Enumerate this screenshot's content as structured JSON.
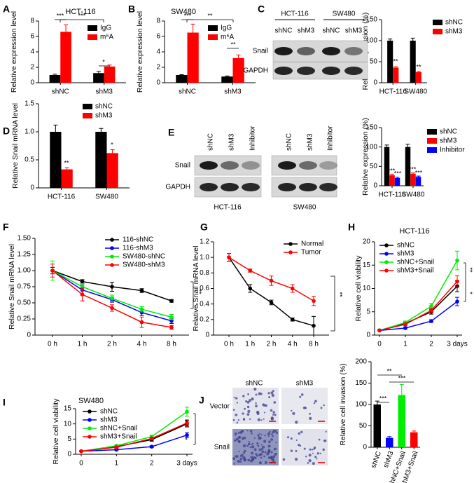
{
  "chart_data": [
    {
      "type": "bar",
      "panel": "A",
      "title": "HCT-116",
      "ylabel": "Relative expression level",
      "categories": [
        "shNC",
        "shM3"
      ],
      "series": [
        {
          "name": "IgG",
          "color": "#000000",
          "values": [
            1.0,
            1.25
          ],
          "errors": [
            0.1,
            0.2
          ]
        },
        {
          "name": "m⁶A",
          "color": "#ff0000",
          "values": [
            6.6,
            2.1
          ],
          "errors": [
            0.9,
            0.2
          ]
        }
      ],
      "ylim": [
        0,
        8
      ],
      "yticks": [
        0,
        2,
        4,
        6,
        8
      ],
      "annotations": [
        "***",
        "***",
        "*"
      ]
    },
    {
      "type": "bar",
      "panel": "B",
      "title": "SW480",
      "ylabel": "Relative expression level",
      "categories": [
        "shNC",
        "shM3"
      ],
      "series": [
        {
          "name": "IgG",
          "color": "#000000",
          "values": [
            1.0,
            0.8
          ],
          "errors": [
            0.05,
            0.08
          ]
        },
        {
          "name": "m⁶A",
          "color": "#ff0000",
          "values": [
            6.5,
            3.2
          ],
          "errors": [
            1.1,
            0.4
          ]
        }
      ],
      "ylim": [
        0,
        8
      ],
      "yticks": [
        0,
        2,
        4,
        6,
        8
      ],
      "annotations": [
        "***",
        "**",
        "**"
      ]
    },
    {
      "type": "bar",
      "ylabel": "Relative expression (%)",
      "categories": [
        "HCT-116",
        "SW480"
      ],
      "series": [
        {
          "name": "shNC",
          "color": "#000000",
          "values": [
            100,
            100
          ],
          "errors": [
            4,
            6
          ]
        },
        {
          "name": "shM3",
          "color": "#ff0000",
          "values": [
            36,
            25
          ],
          "errors": [
            2,
            2
          ]
        }
      ],
      "ylim": [
        0,
        150
      ],
      "yticks": [
        0,
        50,
        100,
        150
      ],
      "annotations": [
        "**",
        "**"
      ]
    },
    {
      "type": "bar",
      "panel": "D",
      "ylabel": "Relative Snail mRNA level",
      "categories": [
        "HCT-116",
        "SW480"
      ],
      "series": [
        {
          "name": "shNC",
          "color": "#000000",
          "values": [
            1.0,
            1.0
          ],
          "errors": [
            0.12,
            0.06
          ]
        },
        {
          "name": "shM3",
          "color": "#ff0000",
          "values": [
            0.33,
            0.62
          ],
          "errors": [
            0.03,
            0.06
          ]
        }
      ],
      "ylim": [
        0,
        1.5
      ],
      "yticks": [
        0,
        0.5,
        {
          "value": 1,
          "label": "1.0"
        },
        1.5
      ],
      "annotations": [
        "**",
        "*"
      ]
    },
    {
      "type": "bar",
      "ylabel": "Relative expression (%)",
      "categories": [
        "HCT-116",
        "SW480"
      ],
      "series": [
        {
          "name": "shNC",
          "color": "#000000",
          "values": [
            100,
            100
          ],
          "errors": [
            5,
            7
          ]
        },
        {
          "name": "shM3",
          "color": "#ff0000",
          "values": [
            27,
            31
          ],
          "errors": [
            3,
            2
          ]
        },
        {
          "name": "Inhibitor",
          "color": "#0000ff",
          "values": [
            20,
            23
          ],
          "errors": [
            2,
            2
          ]
        }
      ],
      "ylim": [
        0,
        150
      ],
      "yticks": [
        0,
        50,
        100,
        150
      ],
      "annotations": [
        "***",
        "***",
        "***",
        "***"
      ]
    },
    {
      "type": "line",
      "panel": "F",
      "ylabel": "Relative Snail mRNA level",
      "categories": [
        "0 h",
        "1 h",
        "2 h",
        "4 h",
        "8 h"
      ],
      "series": [
        {
          "name": "116-shNC",
          "color": "#000000",
          "values": [
            1.0,
            0.83,
            0.75,
            0.69,
            0.53
          ],
          "errors": [
            0.05,
            0.03,
            0.07,
            0.03,
            0.02
          ]
        },
        {
          "name": "116-shM3",
          "color": "#0000ff",
          "values": [
            1.0,
            0.7,
            0.55,
            0.35,
            0.22
          ],
          "errors": [
            0.05,
            0.08,
            0.04,
            0.05,
            0.04
          ]
        },
        {
          "name": "SW480-shNC",
          "color": "#00ee00",
          "values": [
            1.0,
            0.75,
            0.57,
            0.4,
            0.28
          ],
          "errors": [
            0.15,
            0.05,
            0.05,
            0.04,
            0.04
          ]
        },
        {
          "name": "SW480-shM3",
          "color": "#ff0000",
          "values": [
            1.0,
            0.63,
            0.42,
            0.2,
            0.12
          ],
          "errors": [
            0.1,
            0.1,
            0.05,
            0.08,
            0.03
          ]
        }
      ],
      "ylim": [
        0,
        1.5
      ],
      "yticks": [
        0,
        0.25,
        {
          "value": 0.5,
          "label": "0.50"
        },
        0.75,
        {
          "value": 1,
          "label": "1.00"
        },
        1.25,
        {
          "value": 1.5,
          "label": "1.50"
        }
      ],
      "annotations": [
        "**",
        "*"
      ]
    },
    {
      "type": "line",
      "panel": "G",
      "ylabel": "Relative Snail mRNA level",
      "categories": [
        "0 h",
        "1 h",
        "2 h",
        "4 h",
        "8 h"
      ],
      "series": [
        {
          "name": "Normal",
          "color": "#000000",
          "values": [
            1.0,
            0.6,
            0.42,
            0.2,
            0.12
          ],
          "errors": [
            0.05,
            0.05,
            0.03,
            0.02,
            0.12
          ]
        },
        {
          "name": "Tumor",
          "color": "#ff0000",
          "values": [
            1.0,
            0.83,
            0.7,
            0.6,
            0.44
          ],
          "errors": [
            0.05,
            0.02,
            0.06,
            0.05,
            0.06
          ]
        }
      ],
      "ylim": [
        0,
        1.2
      ],
      "yticks": [
        0,
        0.2,
        0.4,
        0.6,
        0.8,
        {
          "value": 1,
          "label": "1.0"
        },
        1.2
      ],
      "annotations": [
        "**"
      ]
    },
    {
      "type": "line",
      "panel": "H",
      "title": "HCT-116",
      "ylabel": "Relative cell viability",
      "categories": [
        "0",
        "1",
        "2",
        "3 days"
      ],
      "series": [
        {
          "name": "shNC",
          "color": "#000000",
          "values": [
            1,
            2.5,
            5,
            10.5
          ],
          "errors": [
            0.1,
            0.3,
            0.5,
            1.2
          ]
        },
        {
          "name": "shM3",
          "color": "#0000ff",
          "values": [
            1,
            1.5,
            3,
            7.2
          ],
          "errors": [
            0.1,
            0.2,
            0.3,
            0.9
          ]
        },
        {
          "name": "shNC+Snail",
          "color": "#00ee00",
          "values": [
            1,
            2.7,
            6.2,
            16
          ],
          "errors": [
            0.1,
            0.3,
            0.6,
            2
          ]
        },
        {
          "name": "shM3+Snail",
          "color": "#ff0000",
          "values": [
            1,
            2.3,
            5.3,
            11.5
          ],
          "errors": [
            0.1,
            0.3,
            0.4,
            1.2
          ]
        }
      ],
      "ylim": [
        0,
        20
      ],
      "yticks": [
        0,
        5,
        10,
        15,
        20
      ],
      "annotations": [
        "**",
        "*"
      ]
    },
    {
      "type": "line",
      "panel": "I",
      "title": "SW480",
      "ylabel": "Relative cell viability",
      "categories": [
        "0",
        "1",
        "2",
        "3 days"
      ],
      "series": [
        {
          "name": "shNC",
          "color": "#000000",
          "values": [
            1,
            2.5,
            4.8,
            10
          ],
          "errors": [
            0.1,
            0.3,
            0.5,
            1.0
          ]
        },
        {
          "name": "shM3",
          "color": "#0000ff",
          "values": [
            1,
            1.5,
            2.5,
            6.3
          ],
          "errors": [
            0.1,
            0.2,
            0.3,
            0.8
          ]
        },
        {
          "name": "shNC+Snail",
          "color": "#00ee00",
          "values": [
            1,
            2.8,
            5.8,
            14
          ],
          "errors": [
            0.1,
            0.3,
            0.5,
            1.5
          ]
        },
        {
          "name": "shM3+Snail",
          "color": "#ff0000",
          "values": [
            1,
            2.3,
            5.2,
            10.3
          ],
          "errors": [
            0.1,
            0.3,
            0.4,
            1.0
          ]
        }
      ],
      "ylim": [
        0,
        15
      ],
      "yticks": [
        0,
        5,
        10,
        15
      ],
      "annotations": [
        "*",
        "*"
      ]
    },
    {
      "type": "bar",
      "ylabel": "Relative cell invasion (%)",
      "categories": [
        "shNC",
        "shM3",
        "shNC+Snail",
        "shM3+Snail"
      ],
      "series": [
        {
          "colors": [
            "#000000",
            "#0000ff",
            "#00ee00",
            "#ff0000"
          ],
          "values": [
            100,
            22,
            122,
            35
          ],
          "errors": [
            8,
            3,
            25,
            3
          ]
        }
      ],
      "ylim": [
        0,
        200
      ],
      "yticks": [
        0,
        50,
        100,
        150,
        200
      ],
      "annotations": [
        "***",
        "**",
        "***"
      ]
    }
  ],
  "blots": [
    {
      "panel": "C",
      "groups": [
        "HCT-116",
        "SW480"
      ],
      "lanes": [
        "shNC",
        "shM3",
        "shNC",
        "shM3"
      ],
      "rows": [
        "Snail",
        "GAPDH"
      ]
    },
    {
      "panel": "E",
      "groups": [
        "HCT-116",
        "SW480"
      ],
      "lanes": [
        "shNC",
        "shM3",
        "Inhibitor",
        "shNC",
        "shM3",
        "Inhibitor"
      ],
      "rows": [
        "Snail",
        "GAPDH"
      ]
    }
  ],
  "micrographs": {
    "panel": "J",
    "columns": [
      "shNC",
      "shM3"
    ],
    "rows": [
      "Vector",
      "Snail"
    ]
  }
}
